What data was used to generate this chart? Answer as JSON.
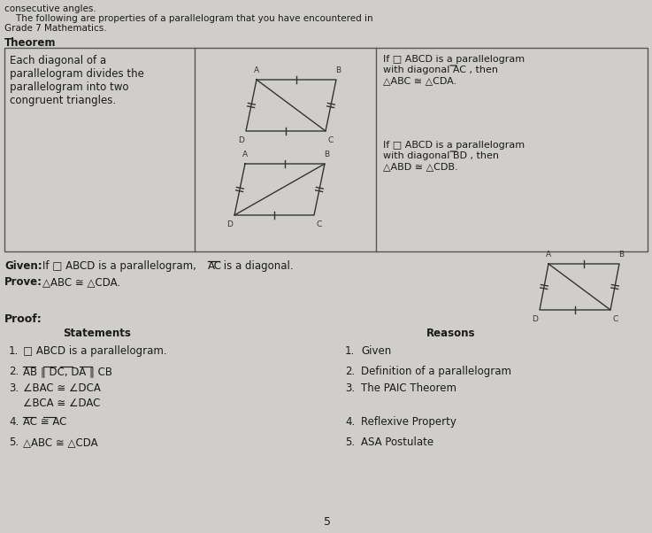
{
  "bg_color": "#d0cecb",
  "text_color": "#1a1a1a",
  "fig_color": "#333333",
  "header_line1": "consecutive angles.",
  "header_line2": "    The following are properties of a parallelogram that you have encountered in",
  "header_line3": "Grade 7 Mathematics.",
  "theorem_label": "Theorem",
  "theorem_text": "Each diagonal of a\nparallelogram divides the\nparallelogram into two\ncongruent triangles.",
  "given_bold": "Given:",
  "given_rest": " If □ ABCD is a parallelogram, AC  is a diagonal.",
  "prove_bold": "Prove:",
  "prove_rest": " △ABC ≅ △CDA.",
  "proof_label": "Proof:",
  "statements_header": "Statements",
  "reasons_header": "Reasons",
  "page_number": "5"
}
